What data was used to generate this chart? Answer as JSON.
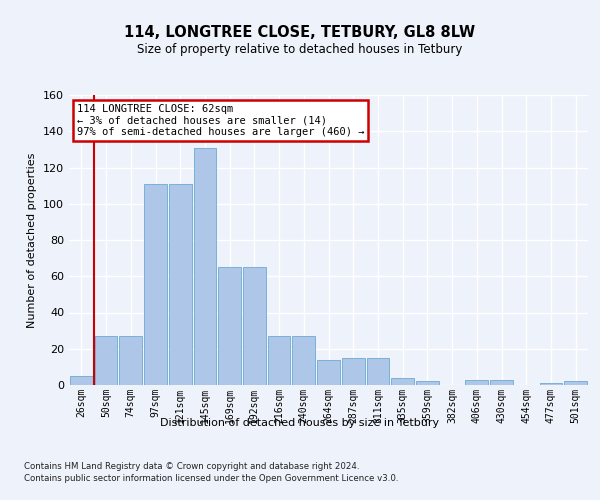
{
  "title1": "114, LONGTREE CLOSE, TETBURY, GL8 8LW",
  "title2": "Size of property relative to detached houses in Tetbury",
  "xlabel": "Distribution of detached houses by size in Tetbury",
  "ylabel": "Number of detached properties",
  "footnote": "Contains HM Land Registry data © Crown copyright and database right 2024.\nContains public sector information licensed under the Open Government Licence v3.0.",
  "bin_labels": [
    "26sqm",
    "50sqm",
    "74sqm",
    "97sqm",
    "121sqm",
    "145sqm",
    "169sqm",
    "192sqm",
    "216sqm",
    "240sqm",
    "264sqm",
    "287sqm",
    "311sqm",
    "335sqm",
    "359sqm",
    "382sqm",
    "406sqm",
    "430sqm",
    "454sqm",
    "477sqm",
    "501sqm"
  ],
  "bar_heights": [
    5,
    27,
    27,
    111,
    111,
    131,
    65,
    65,
    27,
    27,
    14,
    15,
    15,
    4,
    2,
    0,
    3,
    3,
    0,
    1,
    2
  ],
  "bar_color": "#aec6e8",
  "bar_edge_color": "#6aaad4",
  "annotation_text": "114 LONGTREE CLOSE: 62sqm\n← 3% of detached houses are smaller (14)\n97% of semi-detached houses are larger (460) →",
  "annotation_box_color": "#ffffff",
  "annotation_box_edge": "#cc0000",
  "vline_color": "#cc0000",
  "ylim": [
    0,
    160
  ],
  "yticks": [
    0,
    20,
    40,
    60,
    80,
    100,
    120,
    140,
    160
  ],
  "bg_color": "#eef2fa",
  "grid_color": "#ffffff"
}
